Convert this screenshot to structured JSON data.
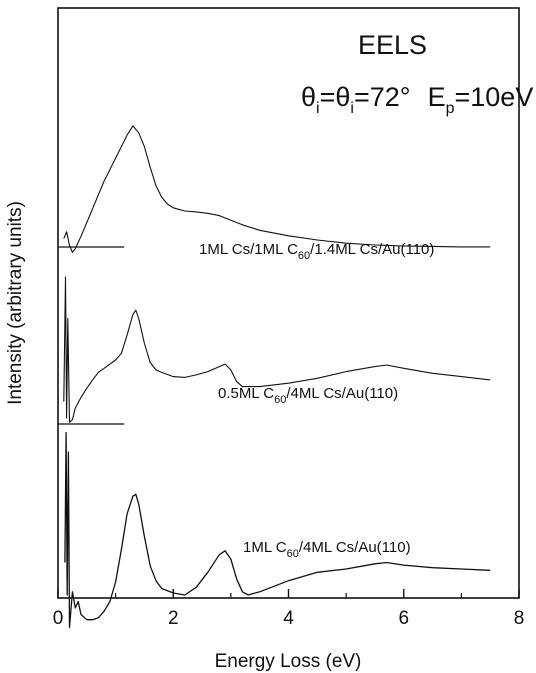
{
  "chart_data": {
    "type": "line",
    "title": "",
    "xlabel": "Energy Loss (eV)",
    "ylabel": "Intensity (arbitrary units)",
    "xlim": [
      0,
      8
    ],
    "x_ticks": [
      "0",
      "2",
      "4",
      "6",
      "8"
    ],
    "y_ticks_shown": false,
    "grid": false,
    "legend": "none",
    "annotations": {
      "method": "EELS",
      "conditions": {
        "theta1": "θ",
        "sub1": "i",
        "theta2": "θ",
        "sub2": "i",
        "angle": "=72°",
        "ep": "E",
        "ep_sub": "p",
        "ep_val": "=10eV"
      }
    },
    "series": [
      {
        "label_parts": [
          "1ML Cs/1ML C",
          "60",
          "/1.4ML Cs/Au(110)"
        ],
        "baseline": 0.72,
        "x": [
          0.1,
          0.15,
          0.2,
          0.25,
          0.3,
          0.4,
          0.5,
          0.6,
          0.7,
          0.8,
          0.9,
          1.0,
          1.1,
          1.2,
          1.3,
          1.4,
          1.5,
          1.6,
          1.7,
          1.8,
          1.9,
          2.0,
          2.2,
          2.4,
          2.6,
          2.8,
          3.0,
          3.2,
          3.5,
          4.0,
          4.5,
          5.0,
          5.5,
          6.0,
          6.5,
          7.0,
          7.5
        ],
        "y": [
          0.9,
          1.05,
          0.75,
          0.6,
          0.68,
          0.95,
          1.25,
          1.55,
          1.85,
          2.15,
          2.4,
          2.65,
          2.9,
          3.15,
          3.35,
          3.2,
          2.9,
          2.45,
          2.05,
          1.8,
          1.65,
          1.57,
          1.5,
          1.48,
          1.45,
          1.4,
          1.3,
          1.2,
          1.08,
          0.96,
          0.87,
          0.8,
          0.76,
          0.74,
          0.73,
          0.72,
          0.72
        ]
      },
      {
        "label_parts": [
          "0.5ML C",
          "60",
          "/4ML Cs/Au(110)"
        ],
        "baseline": 0.23,
        "x": [
          0.1,
          0.13,
          0.15,
          0.17,
          0.2,
          0.25,
          0.3,
          0.4,
          0.5,
          0.6,
          0.7,
          0.8,
          0.9,
          1.0,
          1.1,
          1.2,
          1.3,
          1.35,
          1.4,
          1.5,
          1.6,
          1.7,
          1.8,
          2.0,
          2.2,
          2.4,
          2.6,
          2.8,
          2.9,
          3.0,
          3.1,
          3.2,
          3.5,
          4.0,
          4.5,
          5.0,
          5.5,
          5.7,
          6.0,
          6.5,
          7.0,
          7.5
        ],
        "y": [
          0.5,
          2.0,
          0.3,
          1.5,
          0.25,
          0.28,
          0.42,
          0.55,
          0.66,
          0.76,
          0.85,
          0.9,
          0.95,
          1.0,
          1.08,
          1.3,
          1.55,
          1.6,
          1.5,
          1.2,
          0.97,
          0.88,
          0.85,
          0.8,
          0.79,
          0.82,
          0.86,
          0.92,
          0.95,
          0.88,
          0.74,
          0.68,
          0.68,
          0.72,
          0.78,
          0.86,
          0.92,
          0.94,
          0.9,
          0.84,
          0.8,
          0.76
        ]
      },
      {
        "label_parts": [
          "1ML C",
          "60",
          "/4ML Cs/Au(110)"
        ],
        "baseline": 0.23,
        "x": [
          0.12,
          0.14,
          0.16,
          0.18,
          0.2,
          0.25,
          0.3,
          0.35,
          0.4,
          0.5,
          0.6,
          0.7,
          0.8,
          0.9,
          1.0,
          1.1,
          1.2,
          1.3,
          1.35,
          1.4,
          1.5,
          1.6,
          1.7,
          1.8,
          2.0,
          2.2,
          2.4,
          2.6,
          2.8,
          2.9,
          3.0,
          3.1,
          3.2,
          3.3,
          3.5,
          4.0,
          4.5,
          5.0,
          5.5,
          5.7,
          6.0,
          6.5,
          7.0,
          7.5
        ],
        "y": [
          -0.5,
          1.5,
          -1.0,
          1.2,
          -1.5,
          -0.95,
          -1.2,
          -1.1,
          -1.3,
          -1.38,
          -1.38,
          -1.35,
          -1.25,
          -1.1,
          -0.8,
          -0.3,
          0.25,
          0.52,
          0.55,
          0.4,
          -0.1,
          -0.55,
          -0.78,
          -0.9,
          -0.97,
          -1.0,
          -0.88,
          -0.65,
          -0.38,
          -0.32,
          -0.45,
          -0.75,
          -0.95,
          -1.0,
          -0.95,
          -0.78,
          -0.65,
          -0.6,
          -0.52,
          -0.5,
          -0.54,
          -0.58,
          -0.6,
          -0.62
        ]
      }
    ]
  }
}
